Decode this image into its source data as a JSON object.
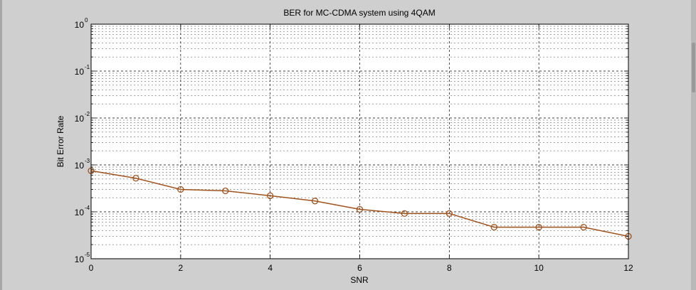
{
  "chart_data": {
    "type": "line",
    "title": "BER for MC-CDMA system using 4QAM",
    "xlabel": "SNR",
    "ylabel": "Bit Error Rate",
    "xlim": [
      0,
      12
    ],
    "ylim": [
      1e-05,
      1
    ],
    "yscale": "log",
    "grid": true,
    "x_ticks": [
      "0",
      "2",
      "4",
      "6",
      "8",
      "10",
      "12"
    ],
    "y_ticks": [
      {
        "base": "10",
        "exp": "0"
      },
      {
        "base": "10",
        "exp": "-1"
      },
      {
        "base": "10",
        "exp": "-2"
      },
      {
        "base": "10",
        "exp": "-3"
      },
      {
        "base": "10",
        "exp": "-4"
      },
      {
        "base": "10",
        "exp": "-5"
      }
    ],
    "series": [
      {
        "color": "#a0521c",
        "marker": "circle",
        "x": [
          0,
          1,
          2,
          3,
          4,
          5,
          6,
          7,
          8,
          9,
          10,
          11,
          12
        ],
        "y": [
          0.00075,
          0.00052,
          0.0003,
          0.00028,
          0.00022,
          0.00017,
          0.000113,
          9.2e-05,
          9.2e-05,
          4.7e-05,
          4.7e-05,
          4.7e-05,
          3e-05
        ]
      }
    ]
  }
}
